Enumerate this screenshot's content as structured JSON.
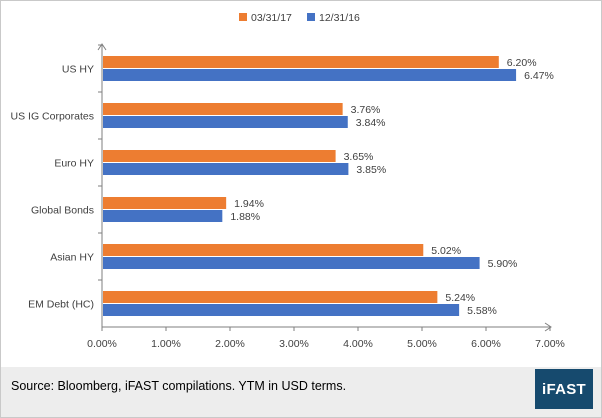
{
  "colors": {
    "series_a": "#ed7d31",
    "series_b": "#4472c4",
    "axis": "#7f7f7f",
    "text": "#404040",
    "logo_bg": "#164a6e"
  },
  "footer": {
    "source": "Source: Bloomberg, iFAST compilations.  YTM in USD terms.",
    "logo": "iFAST"
  },
  "chart_data": {
    "type": "bar",
    "orientation": "horizontal",
    "categories": [
      "US HY",
      "US IG Corporates",
      "Euro HY",
      "Global Bonds",
      "Asian HY",
      "EM Debt (HC)"
    ],
    "series": [
      {
        "name": "03/31/17",
        "values": [
          6.2,
          3.76,
          3.65,
          1.94,
          5.02,
          5.24
        ],
        "labels": [
          "6.20%",
          "3.76%",
          "3.65%",
          "1.94%",
          "5.02%",
          "5.24%"
        ]
      },
      {
        "name": "12/31/16",
        "values": [
          6.47,
          3.84,
          3.85,
          1.88,
          5.9,
          5.58
        ],
        "labels": [
          "6.47%",
          "3.84%",
          "3.85%",
          "1.88%",
          "5.90%",
          "5.58%"
        ]
      }
    ],
    "xlim": [
      0,
      7
    ],
    "xticks": [
      "0.00%",
      "1.00%",
      "2.00%",
      "3.00%",
      "4.00%",
      "5.00%",
      "6.00%",
      "7.00%"
    ],
    "legend_position": "top-center",
    "grid": false
  }
}
